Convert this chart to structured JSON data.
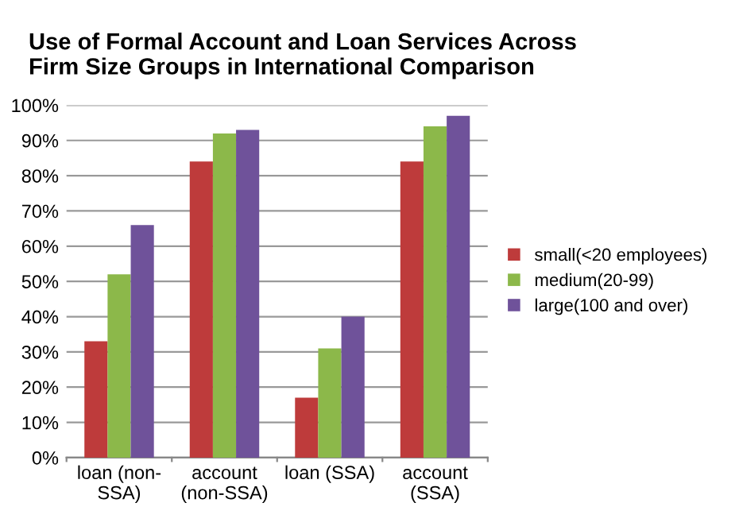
{
  "chart_data": {
    "type": "bar",
    "title": "Use of Formal Account and Loan Services Across\nFirm Size Groups in International Comparison",
    "categories": [
      "loan (non-\nSSA)",
      "account\n(non-SSA)",
      "loan (SSA)",
      "account\n(SSA)"
    ],
    "series": [
      {
        "name": "small(<20 employees)",
        "color": "#be3b3b",
        "values": [
          33,
          84,
          17,
          84
        ]
      },
      {
        "name": "medium(20-99)",
        "color": "#8cb84a",
        "values": [
          52,
          92,
          31,
          94
        ]
      },
      {
        "name": "large(100 and over)",
        "color": "#6f529a",
        "values": [
          66,
          93,
          40,
          97
        ]
      }
    ],
    "ylim": [
      0,
      100
    ],
    "yticks": [
      {
        "value": 0,
        "label": "0%"
      },
      {
        "value": 10,
        "label": "10%"
      },
      {
        "value": 20,
        "label": "20%"
      },
      {
        "value": 30,
        "label": "30%"
      },
      {
        "value": 40,
        "label": "40%"
      },
      {
        "value": 50,
        "label": "50%"
      },
      {
        "value": 60,
        "label": "60%"
      },
      {
        "value": 70,
        "label": "70%"
      },
      {
        "value": 80,
        "label": "80%"
      },
      {
        "value": 90,
        "label": "90%"
      },
      {
        "value": 100,
        "label": "100%"
      }
    ],
    "grid": "y",
    "legend": "right"
  }
}
